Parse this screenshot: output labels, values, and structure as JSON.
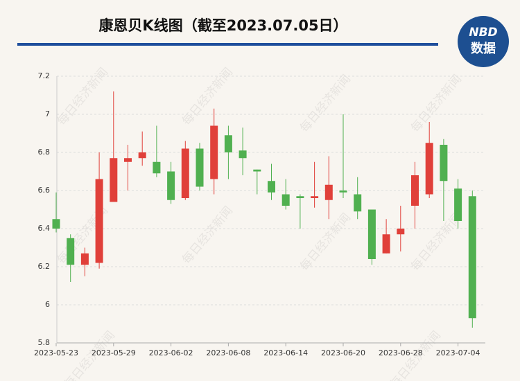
{
  "chart_data": {
    "type": "candlestick",
    "title": "康恩贝K线图（截至2023.07.05日）",
    "categories": [
      "2023-05-23",
      null,
      null,
      null,
      "2023-05-29",
      null,
      null,
      null,
      "2023-06-02",
      null,
      null,
      null,
      "2023-06-08",
      null,
      null,
      null,
      "2023-06-14",
      null,
      null,
      null,
      "2023-06-20",
      null,
      null,
      null,
      "2023-06-28",
      null,
      null,
      null,
      "2023-07-04",
      null
    ],
    "open": [
      6.45,
      6.35,
      6.21,
      6.22,
      6.54,
      6.75,
      6.77,
      6.75,
      6.7,
      6.56,
      6.82,
      6.66,
      6.89,
      6.81,
      6.71,
      6.65,
      6.58,
      6.57,
      6.56,
      6.55,
      6.6,
      6.58,
      6.5,
      6.27,
      6.37,
      6.52,
      6.58,
      6.84,
      6.61,
      6.57
    ],
    "high": [
      6.59,
      6.37,
      6.3,
      6.8,
      7.12,
      6.84,
      6.91,
      6.94,
      6.75,
      6.86,
      6.85,
      7.03,
      6.94,
      6.93,
      6.71,
      6.74,
      6.66,
      6.58,
      6.75,
      6.78,
      7.0,
      6.67,
      6.5,
      6.45,
      6.52,
      6.75,
      6.96,
      6.87,
      6.66,
      6.6
    ],
    "low": [
      6.38,
      6.12,
      6.15,
      6.19,
      6.54,
      6.6,
      6.73,
      6.67,
      6.53,
      6.55,
      6.6,
      6.58,
      6.66,
      6.68,
      6.58,
      6.55,
      6.5,
      6.4,
      6.51,
      6.45,
      6.56,
      6.45,
      6.21,
      6.27,
      6.28,
      6.4,
      6.56,
      6.44,
      6.4,
      5.88
    ],
    "close": [
      6.4,
      6.21,
      6.27,
      6.66,
      6.77,
      6.77,
      6.8,
      6.69,
      6.55,
      6.82,
      6.62,
      6.94,
      6.8,
      6.77,
      6.7,
      6.59,
      6.52,
      6.56,
      6.57,
      6.63,
      6.59,
      6.49,
      6.24,
      6.37,
      6.4,
      6.68,
      6.85,
      6.65,
      6.44,
      5.93
    ],
    "up_color": "#e0403a",
    "down_color": "#50b050",
    "ylim": [
      5.8,
      7.2
    ],
    "yticks": [
      5.8,
      6,
      6.2,
      6.4,
      6.6,
      6.8,
      7,
      7.2
    ],
    "grid": true
  },
  "logo": {
    "top": "NBD",
    "bottom": "数据"
  },
  "watermark": "每日经济新闻"
}
